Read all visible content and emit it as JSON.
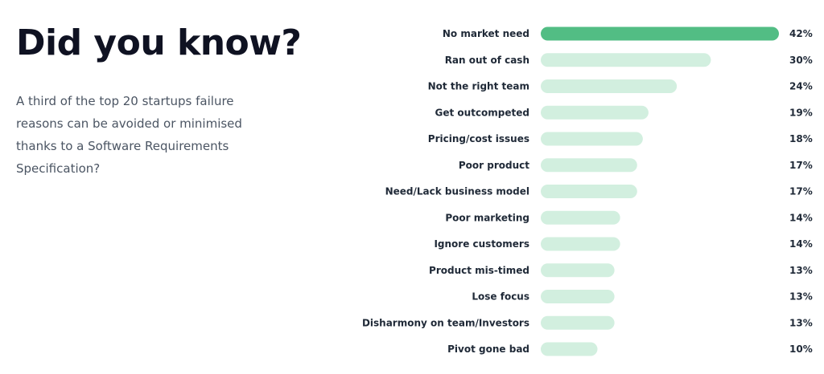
{
  "intro": {
    "title": "Did you know?",
    "description": "A third of the top 20 startups failure reasons can be avoided or minimised thanks to a Software Requirements Specification?"
  },
  "colors": {
    "highlight": "#52bd84",
    "bar": "#d2efdf"
  },
  "chart_data": {
    "type": "bar",
    "orientation": "horizontal",
    "categories": [
      "No market need",
      "Ran out of cash",
      "Not the right team",
      "Get outcompeted",
      "Pricing/cost issues",
      "Poor product",
      "Need/Lack business model",
      "Poor marketing",
      "Ignore customers",
      "Product mis-timed",
      "Lose focus",
      "Disharmony on team/Investors",
      "Pivot gone bad"
    ],
    "values": [
      42,
      30,
      24,
      19,
      18,
      17,
      17,
      14,
      14,
      13,
      13,
      13,
      10
    ],
    "value_labels": [
      "42%",
      "30%",
      "24%",
      "19%",
      "18%",
      "17%",
      "17%",
      "14%",
      "14%",
      "13%",
      "13%",
      "13%",
      "10%"
    ],
    "highlighted_index": 0,
    "xlim": [
      0,
      42
    ],
    "grid": false
  }
}
